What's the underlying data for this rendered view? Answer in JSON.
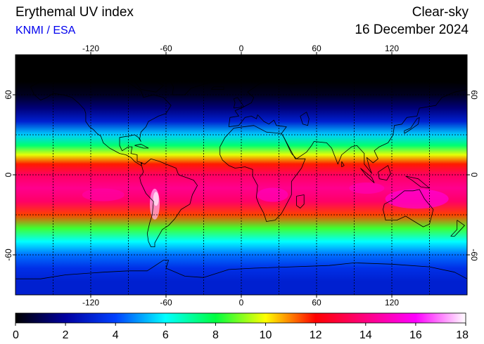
{
  "header": {
    "title": "Erythemal UV index",
    "source": "KNMI / ESA",
    "condition": "Clear-sky",
    "date": "16 December 2024"
  },
  "map": {
    "projection": "equirectangular",
    "lon_range": [
      -180,
      180
    ],
    "lat_range": [
      -90,
      90
    ],
    "lon_ticks": [
      -120,
      -60,
      0,
      60,
      120
    ],
    "lat_ticks": [
      60,
      0,
      -60
    ],
    "lon_labels": [
      "-120",
      "-60",
      "0",
      "60",
      "120"
    ],
    "lat_labels": [
      "60",
      "0",
      "-60"
    ],
    "gridlines": true,
    "grid_lons": [
      -150,
      -120,
      -90,
      -60,
      -30,
      0,
      30,
      60,
      90,
      120,
      150
    ],
    "grid_lats": [
      60,
      30,
      0,
      -30,
      -60
    ],
    "uv_profile": [
      {
        "lat": 90,
        "uv": 0
      },
      {
        "lat": 70,
        "uv": 0
      },
      {
        "lat": 60,
        "uv": 0.4
      },
      {
        "lat": 50,
        "uv": 1.5
      },
      {
        "lat": 40,
        "uv": 3
      },
      {
        "lat": 30,
        "uv": 5.5
      },
      {
        "lat": 22,
        "uv": 7.5
      },
      {
        "lat": 15,
        "uv": 9.8
      },
      {
        "lat": 8,
        "uv": 11.8
      },
      {
        "lat": 0,
        "uv": 13.5
      },
      {
        "lat": -10,
        "uv": 14.2
      },
      {
        "lat": -20,
        "uv": 13.6
      },
      {
        "lat": -30,
        "uv": 11.5
      },
      {
        "lat": -40,
        "uv": 8.5
      },
      {
        "lat": -50,
        "uv": 6
      },
      {
        "lat": -60,
        "uv": 4.5
      },
      {
        "lat": -70,
        "uv": 3.5
      },
      {
        "lat": -80,
        "uv": 3
      },
      {
        "lat": -90,
        "uv": 3
      }
    ]
  },
  "colorbar": {
    "min": 0,
    "max": 18,
    "tick_labels": [
      "0",
      "2",
      "4",
      "6",
      "8",
      "10",
      "12",
      "14",
      "16",
      "18"
    ],
    "stops": [
      {
        "v": 0,
        "c": "#000000"
      },
      {
        "v": 2,
        "c": "#0000a0"
      },
      {
        "v": 4,
        "c": "#0040ff"
      },
      {
        "v": 6,
        "c": "#00ffff"
      },
      {
        "v": 8,
        "c": "#00ff40"
      },
      {
        "v": 10,
        "c": "#ffff00"
      },
      {
        "v": 11,
        "c": "#ff8000"
      },
      {
        "v": 12,
        "c": "#ff0000"
      },
      {
        "v": 14,
        "c": "#ff0080"
      },
      {
        "v": 16,
        "c": "#ff00ff"
      },
      {
        "v": 18,
        "c": "#ffffff"
      }
    ]
  }
}
